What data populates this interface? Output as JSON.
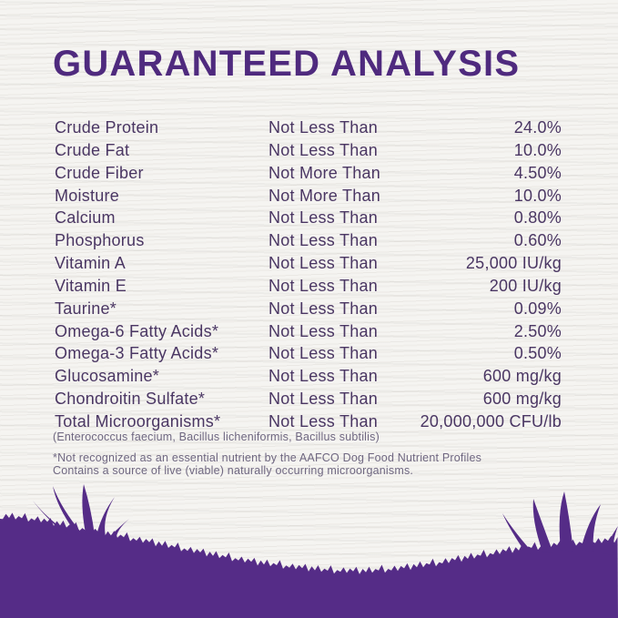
{
  "page": {
    "title": "GUARANTEED ANALYSIS"
  },
  "analysis_table": {
    "rows": [
      {
        "nutrient": "Crude Protein",
        "basis": "Not Less Than",
        "value": "24.0%"
      },
      {
        "nutrient": "Crude Fat",
        "basis": "Not Less Than",
        "value": "10.0%"
      },
      {
        "nutrient": "Crude Fiber",
        "basis": "Not More Than",
        "value": "4.50%"
      },
      {
        "nutrient": "Moisture",
        "basis": "Not More Than",
        "value": "10.0%"
      },
      {
        "nutrient": "Calcium",
        "basis": "Not Less Than",
        "value": "0.80%"
      },
      {
        "nutrient": "Phosphorus",
        "basis": "Not Less Than",
        "value": "0.60%"
      },
      {
        "nutrient": "Vitamin A",
        "basis": "Not Less Than",
        "value": "25,000 IU/kg"
      },
      {
        "nutrient": "Vitamin E",
        "basis": "Not Less Than",
        "value": "200 IU/kg"
      },
      {
        "nutrient": "Taurine*",
        "basis": "Not Less Than",
        "value": "0.09%"
      },
      {
        "nutrient": "Omega-6 Fatty Acids*",
        "basis": "Not Less Than",
        "value": "2.50%"
      },
      {
        "nutrient": "Omega-3 Fatty Acids*",
        "basis": "Not Less Than",
        "value": "0.50%"
      },
      {
        "nutrient": "Glucosamine*",
        "basis": "Not Less Than",
        "value": "600 mg/kg"
      },
      {
        "nutrient": "Chondroitin Sulfate*",
        "basis": "Not Less Than",
        "value": "600 mg/kg"
      },
      {
        "nutrient": "Total Microorganisms*",
        "basis": "Not Less Than",
        "value": "20,000,000 CFU/lb"
      }
    ]
  },
  "footnotes": {
    "microorganisms_list": "(Enterococcus faecium, Bacillus licheniformis, Bacillus subtilis)",
    "asterisk_line1": "*Not recognized as an essential nutrient by the AAFCO Dog Food Nutrient Profiles",
    "asterisk_line2": "Contains a source of live (viable) naturally occurring microorganisms."
  },
  "colors": {
    "title_purple": "#4f2a7e",
    "text_purple": "#4a3663",
    "footnote_gray": "#6f6781",
    "grass_purple": "#552c87",
    "background": "#f5f4f1"
  }
}
